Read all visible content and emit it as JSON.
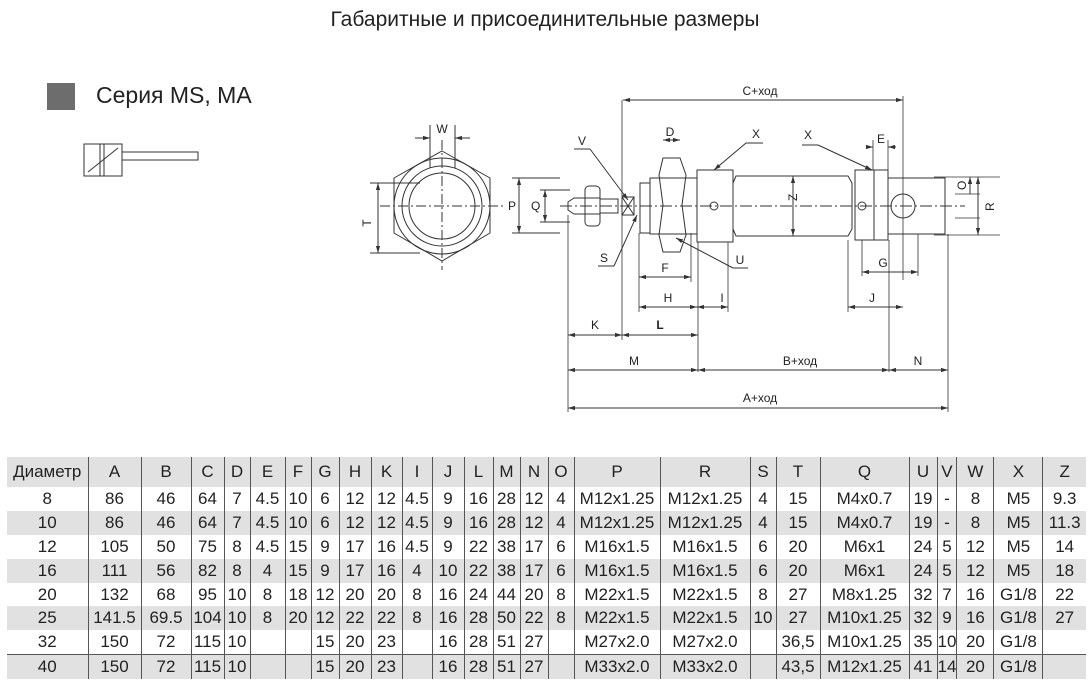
{
  "title": "Габаритные и присоединительные размеры",
  "series": "Серия MS, MA",
  "accent_color": "#6d6d6d",
  "diagram": {
    "labels": {
      "W": "W",
      "T": "T",
      "P": "P",
      "Q": "Q",
      "V": "V",
      "S": "S",
      "D": "D",
      "F": "F",
      "H": "H",
      "I": "I",
      "K": "K",
      "L": "L",
      "M": "M",
      "U": "U",
      "X1": "X",
      "X2": "X",
      "Z": "Z",
      "E": "E",
      "G": "G",
      "J": "J",
      "O": "O",
      "R": "R",
      "N": "N",
      "C": "C+ход",
      "B": "B+ход",
      "A": "A+ход"
    }
  },
  "table": {
    "headers": [
      "Диаметр",
      "A",
      "B",
      "C",
      "D",
      "E",
      "F",
      "G",
      "H",
      "K",
      "I",
      "J",
      "L",
      "M",
      "N",
      "O",
      "P",
      "R",
      "S",
      "T",
      "Q",
      "U",
      "V",
      "W",
      "X",
      "Z"
    ],
    "rows": [
      [
        "8",
        "86",
        "46",
        "64",
        "7",
        "4.5",
        "10",
        "6",
        "12",
        "12",
        "4.5",
        "9",
        "16",
        "28",
        "12",
        "4",
        "M12x1.25",
        "M12x1.25",
        "4",
        "15",
        "M4x0.7",
        "19",
        "-",
        "8",
        "M5",
        "9.3"
      ],
      [
        "10",
        "86",
        "46",
        "64",
        "7",
        "4.5",
        "10",
        "6",
        "12",
        "12",
        "4.5",
        "9",
        "16",
        "28",
        "12",
        "4",
        "M12x1.25",
        "M12x1.25",
        "4",
        "15",
        "M4x0.7",
        "19",
        "-",
        "8",
        "M5",
        "11.3"
      ],
      [
        "12",
        "105",
        "50",
        "75",
        "8",
        "4.5",
        "15",
        "9",
        "17",
        "16",
        "4.5",
        "9",
        "22",
        "38",
        "17",
        "6",
        "M16x1.5",
        "M16x1.5",
        "6",
        "20",
        "M6x1",
        "24",
        "5",
        "12",
        "M5",
        "14"
      ],
      [
        "16",
        "111",
        "56",
        "82",
        "8",
        "4",
        "15",
        "9",
        "17",
        "16",
        "4",
        "10",
        "22",
        "38",
        "17",
        "6",
        "M16x1.5",
        "M16x1.5",
        "6",
        "20",
        "M6x1",
        "24",
        "5",
        "12",
        "M5",
        "18"
      ],
      [
        "20",
        "132",
        "68",
        "95",
        "10",
        "8",
        "18",
        "12",
        "20",
        "20",
        "8",
        "16",
        "24",
        "44",
        "20",
        "8",
        "M22x1.5",
        "M22x1.5",
        "8",
        "27",
        "M8x1.25",
        "32",
        "7",
        "16",
        "G1/8",
        "22"
      ],
      [
        "25",
        "141.5",
        "69.5",
        "104",
        "10",
        "8",
        "20",
        "12",
        "22",
        "22",
        "8",
        "16",
        "28",
        "50",
        "22",
        "8",
        "M22x1.5",
        "M22x1.5",
        "10",
        "27",
        "M10x1.25",
        "32",
        "9",
        "16",
        "G1/8",
        "27"
      ],
      [
        "32",
        "150",
        "72",
        "115",
        "10",
        "",
        "",
        "15",
        "20",
        "23",
        "",
        "16",
        "28",
        "51",
        "27",
        "",
        "M27x2.0",
        "M27x2.0",
        "",
        "36,5",
        "M10x1.25",
        "35",
        "10",
        "20",
        "G1/8",
        ""
      ],
      [
        "40",
        "150",
        "72",
        "115",
        "10",
        "",
        "",
        "15",
        "20",
        "23",
        "",
        "16",
        "28",
        "51",
        "27",
        "",
        "M33x2.0",
        "M33x2.0",
        "",
        "43,5",
        "M12x1.25",
        "41",
        "14",
        "20",
        "G1/8",
        ""
      ]
    ]
  }
}
